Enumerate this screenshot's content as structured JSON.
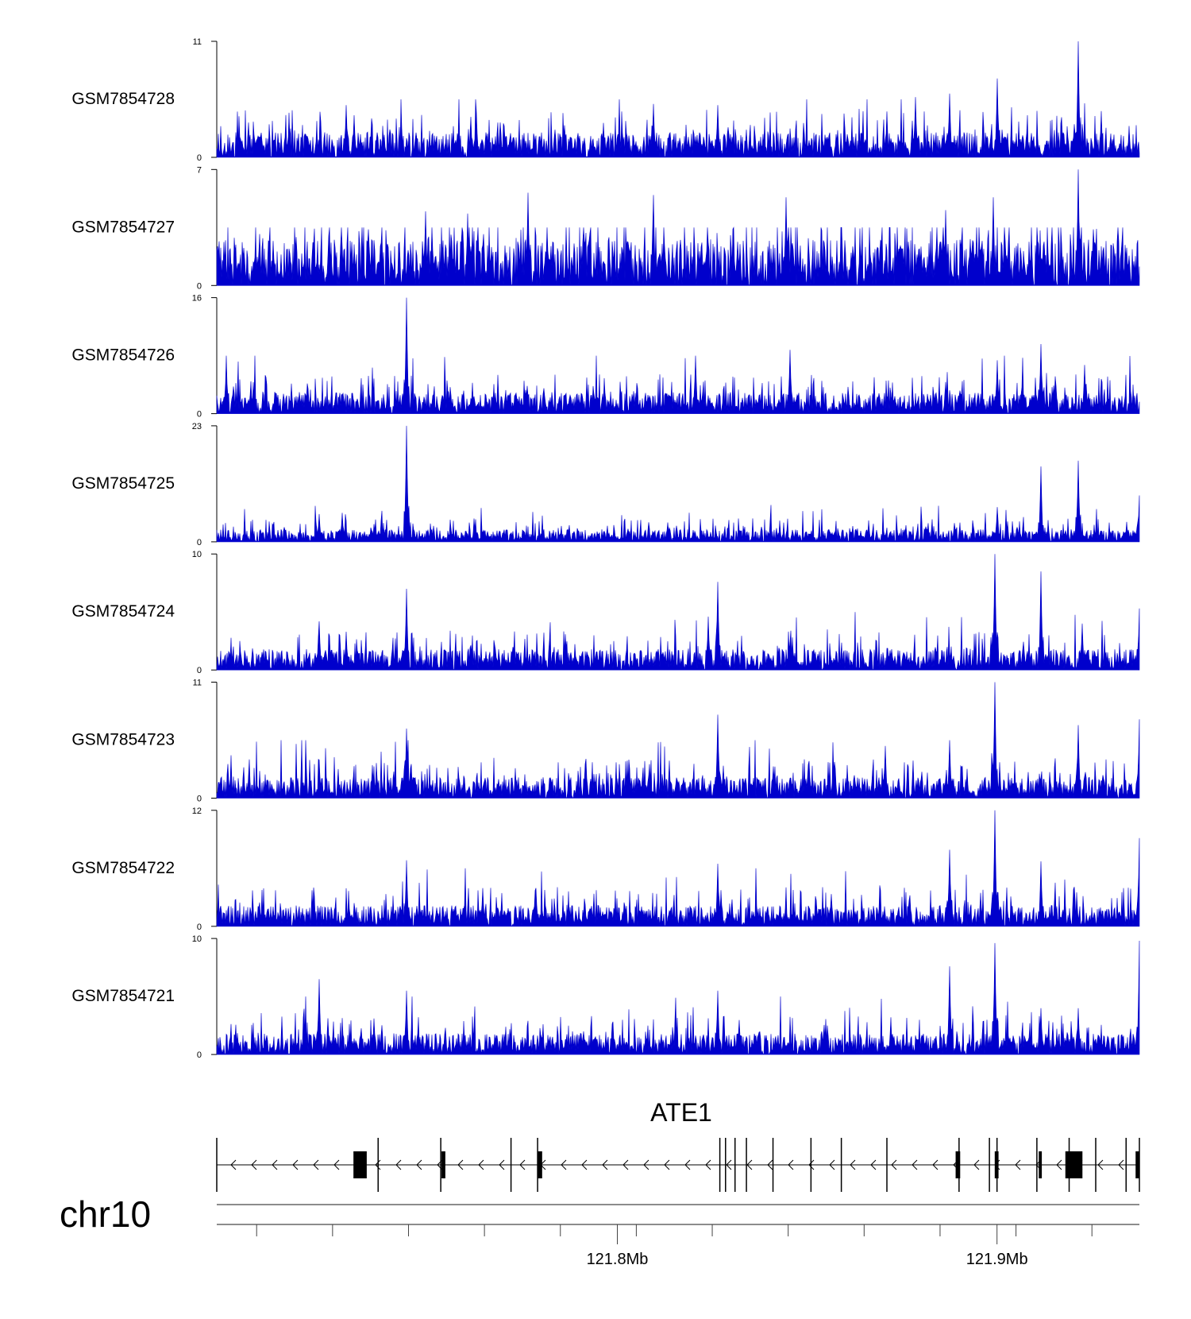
{
  "chart_data": {
    "type": "area",
    "color": "#0000cc",
    "x_range_mb": [
      121.6945,
      121.9375
    ],
    "chromosome": "chr10",
    "axis_ticks": [
      {
        "pos_mb": 121.8,
        "label": "121.8Mb"
      },
      {
        "pos_mb": 121.9,
        "label": "121.9Mb"
      }
    ],
    "minor_ticks_mb": [
      121.705,
      121.725,
      121.745,
      121.765,
      121.785,
      121.805,
      121.825,
      121.845,
      121.865,
      121.885,
      121.905,
      121.925
    ],
    "gene": {
      "name": "ATE1",
      "strand": "-",
      "start_mb": 121.6945,
      "end_mb": 121.9375,
      "exons_mb": [
        {
          "start": 121.7305,
          "end": 121.734,
          "big": true
        },
        {
          "start": 121.7537,
          "end": 121.7547,
          "big": false
        },
        {
          "start": 121.779,
          "end": 121.7802,
          "big": false
        },
        {
          "start": 121.8891,
          "end": 121.8903,
          "big": false
        },
        {
          "start": 121.8994,
          "end": 121.9004,
          "big": false
        },
        {
          "start": 121.911,
          "end": 121.9118,
          "big": false
        },
        {
          "start": 121.918,
          "end": 121.9225,
          "big": true
        },
        {
          "start": 121.9365,
          "end": 121.9375,
          "big": false
        }
      ],
      "splice_marks_mb": [
        121.6945,
        121.737,
        121.7535,
        121.772,
        121.779,
        121.827,
        121.8285,
        121.831,
        121.834,
        121.841,
        121.851,
        121.859,
        121.871,
        121.89,
        121.898,
        121.9,
        121.9105,
        121.919,
        121.926,
        121.934,
        121.9375
      ]
    },
    "series": [
      {
        "name": "GSM7854728",
        "ymax": 11,
        "ymin": 0,
        "seed": 11,
        "base": 0.12,
        "spikes": [
          {
            "x": 121.9,
            "v": 0.68
          },
          {
            "x": 121.9215,
            "v": 1.0
          },
          {
            "x": 121.8875,
            "v": 0.55
          },
          {
            "x": 121.8785,
            "v": 0.52
          },
          {
            "x": 121.8265,
            "v": 0.45
          },
          {
            "x": 121.8095,
            "v": 0.46
          },
          {
            "x": 121.7285,
            "v": 0.45
          }
        ]
      },
      {
        "name": "GSM7854727",
        "ymax": 7,
        "ymin": 0,
        "seed": 27,
        "base": 0.22,
        "spikes": [
          {
            "x": 121.7495,
            "v": 0.64
          },
          {
            "x": 121.7765,
            "v": 0.8
          },
          {
            "x": 121.8095,
            "v": 0.78
          },
          {
            "x": 121.8445,
            "v": 0.76
          },
          {
            "x": 121.899,
            "v": 0.76
          },
          {
            "x": 121.9215,
            "v": 1.0
          },
          {
            "x": 121.8865,
            "v": 0.65
          },
          {
            "x": 121.7605,
            "v": 0.62
          }
        ]
      },
      {
        "name": "GSM7854726",
        "ymax": 16,
        "ymin": 0,
        "seed": 26,
        "base": 0.1,
        "spikes": [
          {
            "x": 121.7445,
            "v": 1.0
          },
          {
            "x": 121.8205,
            "v": 0.5
          },
          {
            "x": 121.8455,
            "v": 0.55
          },
          {
            "x": 121.9115,
            "v": 0.6
          },
          {
            "x": 121.9,
            "v": 0.46
          },
          {
            "x": 121.923,
            "v": 0.42
          },
          {
            "x": 121.697,
            "v": 0.46
          }
        ]
      },
      {
        "name": "GSM7854725",
        "ymax": 23,
        "ymin": 0,
        "seed": 25,
        "base": 0.06,
        "spikes": [
          {
            "x": 121.7445,
            "v": 1.0
          },
          {
            "x": 121.9115,
            "v": 0.65
          },
          {
            "x": 121.9215,
            "v": 0.7
          },
          {
            "x": 121.9375,
            "v": 0.4
          },
          {
            "x": 121.9,
            "v": 0.3
          },
          {
            "x": 121.7275,
            "v": 0.25
          },
          {
            "x": 121.7215,
            "v": 0.24
          }
        ]
      },
      {
        "name": "GSM7854724",
        "ymax": 10,
        "ymin": 0,
        "seed": 24,
        "base": 0.1,
        "spikes": [
          {
            "x": 121.7445,
            "v": 0.7
          },
          {
            "x": 121.8265,
            "v": 0.76
          },
          {
            "x": 121.8995,
            "v": 1.0
          },
          {
            "x": 121.9115,
            "v": 0.85
          },
          {
            "x": 121.9225,
            "v": 0.4
          },
          {
            "x": 121.9375,
            "v": 0.53
          },
          {
            "x": 121.7215,
            "v": 0.42
          },
          {
            "x": 121.7285,
            "v": 0.33
          },
          {
            "x": 121.824,
            "v": 0.46
          }
        ]
      },
      {
        "name": "GSM7854723",
        "ymax": 11,
        "ymin": 0,
        "seed": 23,
        "base": 0.1,
        "spikes": [
          {
            "x": 121.7445,
            "v": 0.6
          },
          {
            "x": 121.8265,
            "v": 0.72
          },
          {
            "x": 121.8995,
            "v": 1.0
          },
          {
            "x": 121.9215,
            "v": 0.63
          },
          {
            "x": 121.9375,
            "v": 0.68
          },
          {
            "x": 121.8875,
            "v": 0.5
          },
          {
            "x": 121.8705,
            "v": 0.45
          },
          {
            "x": 121.8505,
            "v": 0.32
          },
          {
            "x": 121.7215,
            "v": 0.33
          }
        ]
      },
      {
        "name": "GSM7854722",
        "ymax": 12,
        "ymin": 0,
        "seed": 22,
        "base": 0.1,
        "spikes": [
          {
            "x": 121.7445,
            "v": 0.57
          },
          {
            "x": 121.8265,
            "v": 0.54
          },
          {
            "x": 121.8995,
            "v": 1.0
          },
          {
            "x": 121.8875,
            "v": 0.66
          },
          {
            "x": 121.9115,
            "v": 0.56
          },
          {
            "x": 121.9375,
            "v": 0.76
          },
          {
            "x": 121.7785,
            "v": 0.33
          },
          {
            "x": 121.7645,
            "v": 0.33
          }
        ]
      },
      {
        "name": "GSM7854721",
        "ymax": 10,
        "ymin": 0,
        "seed": 21,
        "base": 0.1,
        "spikes": [
          {
            "x": 121.7215,
            "v": 0.65
          },
          {
            "x": 121.7445,
            "v": 0.55
          },
          {
            "x": 121.8265,
            "v": 0.55
          },
          {
            "x": 121.8875,
            "v": 0.76
          },
          {
            "x": 121.8995,
            "v": 0.96
          },
          {
            "x": 121.9375,
            "v": 0.98
          },
          {
            "x": 121.9115,
            "v": 0.4
          },
          {
            "x": 121.9215,
            "v": 0.4
          }
        ]
      }
    ]
  }
}
